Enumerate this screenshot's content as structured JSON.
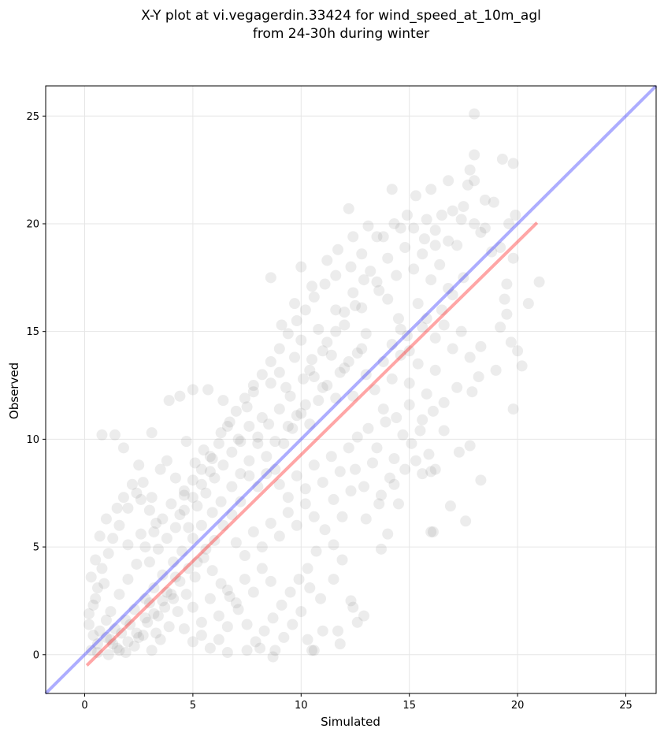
{
  "chart_data": {
    "type": "scatter",
    "title_lines": [
      "X-Y plot at vi.vegagerdin.33424 for wind_speed_at_10m_agl",
      "from 24-30h during winter"
    ],
    "xlabel": "Simulated",
    "ylabel": "Observed",
    "xlim": [
      -1.8,
      26.4
    ],
    "ylim": [
      -1.8,
      26.4
    ],
    "xticks": [
      0,
      5,
      10,
      15,
      20,
      25
    ],
    "yticks": [
      0,
      5,
      10,
      15,
      20,
      25
    ],
    "grid": true,
    "scatter_color": "#808080",
    "scatter_opacity": 0.15,
    "points": [
      [
        18.0,
        25.1
      ],
      [
        19.3,
        23.0
      ],
      [
        19.8,
        22.8
      ],
      [
        18.0,
        23.2
      ],
      [
        17.8,
        22.5
      ],
      [
        18.5,
        21.1
      ],
      [
        18.9,
        21.0
      ],
      [
        19.9,
        20.4
      ],
      [
        18.0,
        22.0
      ],
      [
        17.7,
        21.8
      ],
      [
        16.8,
        22.0
      ],
      [
        16.0,
        21.6
      ],
      [
        15.3,
        21.3
      ],
      [
        14.2,
        21.6
      ],
      [
        12.2,
        20.7
      ],
      [
        17.0,
        20.6
      ],
      [
        17.4,
        20.2
      ],
      [
        18.0,
        20.0
      ],
      [
        18.5,
        19.8
      ],
      [
        19.2,
        18.9
      ],
      [
        19.8,
        18.4
      ],
      [
        19.5,
        17.2
      ],
      [
        19.4,
        16.5
      ],
      [
        20.5,
        16.3
      ],
      [
        21.0,
        17.3
      ],
      [
        19.5,
        15.8
      ],
      [
        19.2,
        15.2
      ],
      [
        19.7,
        14.5
      ],
      [
        20.0,
        14.1
      ],
      [
        20.2,
        13.4
      ],
      [
        19.0,
        13.2
      ],
      [
        18.3,
        14.3
      ],
      [
        19.8,
        11.4
      ],
      [
        18.2,
        12.9
      ],
      [
        17.9,
        12.2
      ],
      [
        17.2,
        12.4
      ],
      [
        17.8,
        9.7
      ],
      [
        17.3,
        9.4
      ],
      [
        16.6,
        10.4
      ],
      [
        16.2,
        8.6
      ],
      [
        16.0,
        8.5
      ],
      [
        15.6,
        8.4
      ],
      [
        16.0,
        5.7
      ],
      [
        16.1,
        5.7
      ],
      [
        18.3,
        8.1
      ],
      [
        17.6,
        6.2
      ],
      [
        16.9,
        6.9
      ],
      [
        14.0,
        5.6
      ],
      [
        13.7,
        4.9
      ],
      [
        12.9,
        1.8
      ],
      [
        12.4,
        2.2
      ],
      [
        12.3,
        2.5
      ],
      [
        11.7,
        1.1
      ],
      [
        11.0,
        1.1
      ],
      [
        10.5,
        0.2
      ],
      [
        10.6,
        0.2
      ],
      [
        8.7,
        -0.1
      ],
      [
        8.1,
        0.3
      ],
      [
        7.5,
        0.2
      ],
      [
        6.6,
        0.1
      ],
      [
        1.4,
        10.2
      ],
      [
        0.8,
        10.2
      ],
      [
        1.8,
        9.6
      ],
      [
        2.5,
        8.8
      ],
      [
        3.1,
        10.3
      ],
      [
        3.9,
        11.8
      ],
      [
        4.4,
        12.0
      ],
      [
        4.7,
        9.9
      ],
      [
        5.0,
        12.3
      ],
      [
        5.7,
        12.3
      ],
      [
        6.4,
        11.8
      ],
      [
        8.6,
        17.5
      ],
      [
        9.1,
        15.3
      ],
      [
        9.7,
        16.3
      ],
      [
        10.0,
        18.0
      ],
      [
        10.5,
        17.1
      ],
      [
        11.2,
        18.3
      ],
      [
        11.7,
        18.8
      ],
      [
        12.4,
        19.4
      ],
      [
        13.1,
        19.9
      ],
      [
        13.5,
        19.4
      ],
      [
        14.6,
        19.8
      ],
      [
        15.2,
        19.8
      ],
      [
        15.7,
        19.3
      ],
      [
        16.2,
        19.0
      ],
      [
        16.8,
        19.2
      ],
      [
        17.2,
        19.0
      ],
      [
        17.5,
        17.5
      ],
      [
        17.0,
        16.7
      ],
      [
        16.5,
        16.0
      ],
      [
        15.6,
        15.2
      ],
      [
        14.9,
        14.8
      ],
      [
        14.5,
        15.6
      ],
      [
        14.0,
        16.5
      ],
      [
        13.5,
        17.3
      ],
      [
        12.9,
        17.4
      ],
      [
        12.5,
        16.2
      ],
      [
        12.0,
        15.9
      ],
      [
        11.6,
        15.0
      ],
      [
        11.0,
        14.1
      ],
      [
        10.5,
        13.7
      ],
      [
        10.1,
        12.8
      ],
      [
        9.5,
        12.0
      ],
      [
        9.0,
        11.4
      ],
      [
        8.5,
        10.7
      ],
      [
        8.0,
        9.8
      ],
      [
        7.6,
        9.0
      ],
      [
        7.2,
        8.4
      ],
      [
        6.8,
        7.8
      ],
      [
        6.3,
        7.1
      ],
      [
        5.9,
        6.6
      ],
      [
        5.4,
        6.0
      ],
      [
        5.0,
        5.4
      ],
      [
        4.5,
        4.8
      ],
      [
        4.1,
        4.3
      ],
      [
        3.6,
        3.7
      ],
      [
        3.2,
        3.1
      ],
      [
        2.8,
        2.6
      ],
      [
        2.3,
        2.1
      ],
      [
        1.9,
        1.6
      ],
      [
        1.4,
        1.2
      ],
      [
        1.0,
        0.8
      ],
      [
        0.6,
        0.5
      ],
      [
        0.3,
        0.2
      ],
      [
        0.2,
        1.4
      ],
      [
        0.4,
        2.3
      ],
      [
        0.6,
        3.1
      ],
      [
        0.8,
        4.0
      ],
      [
        1.1,
        4.7
      ],
      [
        1.3,
        5.4
      ],
      [
        1.6,
        6.0
      ],
      [
        2.0,
        6.8
      ],
      [
        2.4,
        7.5
      ],
      [
        2.7,
        8.0
      ],
      [
        3.1,
        7.3
      ],
      [
        3.5,
        8.6
      ],
      [
        3.8,
        9.0
      ],
      [
        4.2,
        8.2
      ],
      [
        4.6,
        7.6
      ],
      [
        5.1,
        8.9
      ],
      [
        5.5,
        9.5
      ],
      [
        5.9,
        9.1
      ],
      [
        6.3,
        10.3
      ],
      [
        6.7,
        10.8
      ],
      [
        7.1,
        10.0
      ],
      [
        7.5,
        11.5
      ],
      [
        7.8,
        12.2
      ],
      [
        8.2,
        11.0
      ],
      [
        8.6,
        12.6
      ],
      [
        9.0,
        13.1
      ],
      [
        9.3,
        12.4
      ],
      [
        9.7,
        13.8
      ],
      [
        10.0,
        14.6
      ],
      [
        10.4,
        13.2
      ],
      [
        10.8,
        15.1
      ],
      [
        11.2,
        14.5
      ],
      [
        11.6,
        16.0
      ],
      [
        12.0,
        15.3
      ],
      [
        12.4,
        16.8
      ],
      [
        12.8,
        16.1
      ],
      [
        13.2,
        17.8
      ],
      [
        13.6,
        16.9
      ],
      [
        14.0,
        18.4
      ],
      [
        14.4,
        17.6
      ],
      [
        14.8,
        18.9
      ],
      [
        15.2,
        17.9
      ],
      [
        15.6,
        18.6
      ],
      [
        16.0,
        17.4
      ],
      [
        16.4,
        18.1
      ],
      [
        16.8,
        17.0
      ],
      [
        13.0,
        13.0
      ],
      [
        13.4,
        12.3
      ],
      [
        13.8,
        13.6
      ],
      [
        14.2,
        12.8
      ],
      [
        14.6,
        13.9
      ],
      [
        15.0,
        12.6
      ],
      [
        15.4,
        13.5
      ],
      [
        15.8,
        12.1
      ],
      [
        16.2,
        13.2
      ],
      [
        16.6,
        11.7
      ],
      [
        13.1,
        10.5
      ],
      [
        13.5,
        9.6
      ],
      [
        13.9,
        10.8
      ],
      [
        14.3,
        9.1
      ],
      [
        14.7,
        10.2
      ],
      [
        15.1,
        9.8
      ],
      [
        15.5,
        10.4
      ],
      [
        15.9,
        9.3
      ],
      [
        12.5,
        8.6
      ],
      [
        12.9,
        7.8
      ],
      [
        13.3,
        8.9
      ],
      [
        13.7,
        7.4
      ],
      [
        14.1,
        8.2
      ],
      [
        14.5,
        7.0
      ],
      [
        11.5,
        7.2
      ],
      [
        11.9,
        6.4
      ],
      [
        12.3,
        7.6
      ],
      [
        11.1,
        5.8
      ],
      [
        11.5,
        5.1
      ],
      [
        11.9,
        4.4
      ],
      [
        10.7,
        4.8
      ],
      [
        10.3,
        4.0
      ],
      [
        9.9,
        3.5
      ],
      [
        9.5,
        2.9
      ],
      [
        9.1,
        2.3
      ],
      [
        8.7,
        1.7
      ],
      [
        8.3,
        1.1
      ],
      [
        7.9,
        0.6
      ],
      [
        7.5,
        1.4
      ],
      [
        7.1,
        2.1
      ],
      [
        6.7,
        2.7
      ],
      [
        6.3,
        3.3
      ],
      [
        5.9,
        3.9
      ],
      [
        5.5,
        4.5
      ],
      [
        5.1,
        3.6
      ],
      [
        4.7,
        2.8
      ],
      [
        4.3,
        2.0
      ],
      [
        3.9,
        1.3
      ],
      [
        3.5,
        0.7
      ],
      [
        3.1,
        0.2
      ],
      [
        2.7,
        0.9
      ],
      [
        2.3,
        0.4
      ],
      [
        1.9,
        0.1
      ],
      [
        1.5,
        0.3
      ],
      [
        1.1,
        0.0
      ],
      [
        0.7,
        1.1
      ],
      [
        0.4,
        0.9
      ],
      [
        0.2,
        1.9
      ],
      [
        0.5,
        2.6
      ],
      [
        0.9,
        3.3
      ],
      [
        1.2,
        2.0
      ],
      [
        1.6,
        2.8
      ],
      [
        2.0,
        3.5
      ],
      [
        2.4,
        4.2
      ],
      [
        2.8,
        5.0
      ],
      [
        3.2,
        5.7
      ],
      [
        3.6,
        6.3
      ],
      [
        4.0,
        7.0
      ],
      [
        4.4,
        6.5
      ],
      [
        4.8,
        5.9
      ],
      [
        5.2,
        6.9
      ],
      [
        5.6,
        7.5
      ],
      [
        6.0,
        8.2
      ],
      [
        6.4,
        8.8
      ],
      [
        6.8,
        9.4
      ],
      [
        7.2,
        9.9
      ],
      [
        7.6,
        10.6
      ],
      [
        8.0,
        10.1
      ],
      [
        8.4,
        9.2
      ],
      [
        8.8,
        8.6
      ],
      [
        9.2,
        9.8
      ],
      [
        9.6,
        10.5
      ],
      [
        10.0,
        11.2
      ],
      [
        10.4,
        10.7
      ],
      [
        10.8,
        11.8
      ],
      [
        11.2,
        12.5
      ],
      [
        11.6,
        11.9
      ],
      [
        12.0,
        13.3
      ],
      [
        12.4,
        12.0
      ],
      [
        12.8,
        14.2
      ],
      [
        9.0,
        7.9
      ],
      [
        9.4,
        7.3
      ],
      [
        9.8,
        8.3
      ],
      [
        10.2,
        7.7
      ],
      [
        10.6,
        8.8
      ],
      [
        11.0,
        8.0
      ],
      [
        11.4,
        9.2
      ],
      [
        11.8,
        8.5
      ],
      [
        12.2,
        9.6
      ],
      [
        12.6,
        10.1
      ],
      [
        7.0,
        5.2
      ],
      [
        7.4,
        4.6
      ],
      [
        7.8,
        5.7
      ],
      [
        8.2,
        5.0
      ],
      [
        8.6,
        6.1
      ],
      [
        9.0,
        5.5
      ],
      [
        9.4,
        6.6
      ],
      [
        9.8,
        6.0
      ],
      [
        10.2,
        7.0
      ],
      [
        10.6,
        6.4
      ],
      [
        5.0,
        2.2
      ],
      [
        5.4,
        1.5
      ],
      [
        5.8,
        2.6
      ],
      [
        6.2,
        1.8
      ],
      [
        6.6,
        3.0
      ],
      [
        7.0,
        2.4
      ],
      [
        7.4,
        3.5
      ],
      [
        7.8,
        2.9
      ],
      [
        8.2,
        4.0
      ],
      [
        8.6,
        3.4
      ],
      [
        3.0,
        2.4
      ],
      [
        3.4,
        1.8
      ],
      [
        3.8,
        2.9
      ],
      [
        4.2,
        3.6
      ],
      [
        4.6,
        1.2
      ],
      [
        5.0,
        0.6
      ],
      [
        5.4,
        0.9
      ],
      [
        5.8,
        0.3
      ],
      [
        6.2,
        0.7
      ],
      [
        6.6,
        1.3
      ],
      [
        0.6,
        0.1
      ],
      [
        1.0,
        1.6
      ],
      [
        1.3,
        0.5
      ],
      [
        1.7,
        1.0
      ],
      [
        2.1,
        1.4
      ],
      [
        2.5,
        0.8
      ],
      [
        2.9,
        1.5
      ],
      [
        3.3,
        1.0
      ],
      [
        3.7,
        2.2
      ],
      [
        4.1,
        2.6
      ],
      [
        14.2,
        14.4
      ],
      [
        14.6,
        15.1
      ],
      [
        15.0,
        14.1
      ],
      [
        15.4,
        16.3
      ],
      [
        15.8,
        15.6
      ],
      [
        16.2,
        14.7
      ],
      [
        16.6,
        15.3
      ],
      [
        17.0,
        14.2
      ],
      [
        17.4,
        15.0
      ],
      [
        17.8,
        13.8
      ],
      [
        13.0,
        14.9
      ],
      [
        12.6,
        14.0
      ],
      [
        12.2,
        13.6
      ],
      [
        11.8,
        13.1
      ],
      [
        11.4,
        13.9
      ],
      [
        11.0,
        12.4
      ],
      [
        10.6,
        12.9
      ],
      [
        10.2,
        11.6
      ],
      [
        9.8,
        11.1
      ],
      [
        9.4,
        10.6
      ],
      [
        8.8,
        9.9
      ],
      [
        8.4,
        8.4
      ],
      [
        8.0,
        7.8
      ],
      [
        7.6,
        8.3
      ],
      [
        7.2,
        7.1
      ],
      [
        6.8,
        6.5
      ],
      [
        6.4,
        6.0
      ],
      [
        6.0,
        5.3
      ],
      [
        5.6,
        4.9
      ],
      [
        5.2,
        4.3
      ],
      [
        4.8,
        4.0
      ],
      [
        4.4,
        3.4
      ],
      [
        4.0,
        2.8
      ],
      [
        3.6,
        2.5
      ],
      [
        3.2,
        1.9
      ],
      [
        2.8,
        1.7
      ],
      [
        2.4,
        1.0
      ],
      [
        2.0,
        0.6
      ],
      [
        1.6,
        0.2
      ],
      [
        1.2,
        0.7
      ],
      [
        11.5,
        3.5
      ],
      [
        10.9,
        2.6
      ],
      [
        10.4,
        3.1
      ],
      [
        10.0,
        2.0
      ],
      [
        9.6,
        1.4
      ],
      [
        9.2,
        0.8
      ],
      [
        8.8,
        0.2
      ],
      [
        10.3,
        0.7
      ],
      [
        11.8,
        0.5
      ],
      [
        12.6,
        1.5
      ],
      [
        13.8,
        11.4
      ],
      [
        14.4,
        11.0
      ],
      [
        15.0,
        11.6
      ],
      [
        15.6,
        10.9
      ],
      [
        16.1,
        11.3
      ],
      [
        15.3,
        9.0
      ],
      [
        14.8,
        8.6
      ],
      [
        14.3,
        7.9
      ],
      [
        13.6,
        7.0
      ],
      [
        13.0,
        6.3
      ],
      [
        2.0,
        5.1
      ],
      [
        2.6,
        5.6
      ],
      [
        3.0,
        4.3
      ],
      [
        3.4,
        4.9
      ],
      [
        3.8,
        5.4
      ],
      [
        4.2,
        5.9
      ],
      [
        4.6,
        6.7
      ],
      [
        5.0,
        7.3
      ],
      [
        5.4,
        7.9
      ],
      [
        5.8,
        8.5
      ],
      [
        0.3,
        3.6
      ],
      [
        0.5,
        4.4
      ],
      [
        0.7,
        5.5
      ],
      [
        1.0,
        6.3
      ],
      [
        1.5,
        6.8
      ],
      [
        1.8,
        7.3
      ],
      [
        2.2,
        7.9
      ],
      [
        2.6,
        7.2
      ],
      [
        3.0,
        6.7
      ],
      [
        3.3,
        6.1
      ],
      [
        17.5,
        20.8
      ],
      [
        18.3,
        19.6
      ],
      [
        18.8,
        18.7
      ],
      [
        19.6,
        20.0
      ],
      [
        16.5,
        20.4
      ],
      [
        16.2,
        19.7
      ],
      [
        15.8,
        20.2
      ],
      [
        14.9,
        20.4
      ],
      [
        14.3,
        20.0
      ],
      [
        13.8,
        19.4
      ],
      [
        12.8,
        18.6
      ],
      [
        12.3,
        18.0
      ],
      [
        11.6,
        17.6
      ],
      [
        11.1,
        17.2
      ],
      [
        10.6,
        16.6
      ],
      [
        10.2,
        16.0
      ],
      [
        9.8,
        15.5
      ],
      [
        9.4,
        14.9
      ],
      [
        9.0,
        14.2
      ],
      [
        8.6,
        13.6
      ],
      [
        8.2,
        13.0
      ],
      [
        7.8,
        12.5
      ],
      [
        7.4,
        11.9
      ],
      [
        7.0,
        11.3
      ],
      [
        6.6,
        10.6
      ],
      [
        6.2,
        9.8
      ],
      [
        5.8,
        9.2
      ],
      [
        5.4,
        8.6
      ],
      [
        5.0,
        8.1
      ],
      [
        4.6,
        7.4
      ]
    ],
    "series": [
      {
        "type": "line",
        "color": "#3333ff",
        "opacity": 0.4,
        "x": [
          -1.8,
          26.4
        ],
        "y": [
          -1.8,
          26.4
        ]
      },
      {
        "type": "line",
        "color": "#ff2020",
        "opacity": 0.4,
        "x": [
          0.1,
          20.9
        ],
        "y": [
          -0.5,
          20.05
        ]
      }
    ]
  }
}
